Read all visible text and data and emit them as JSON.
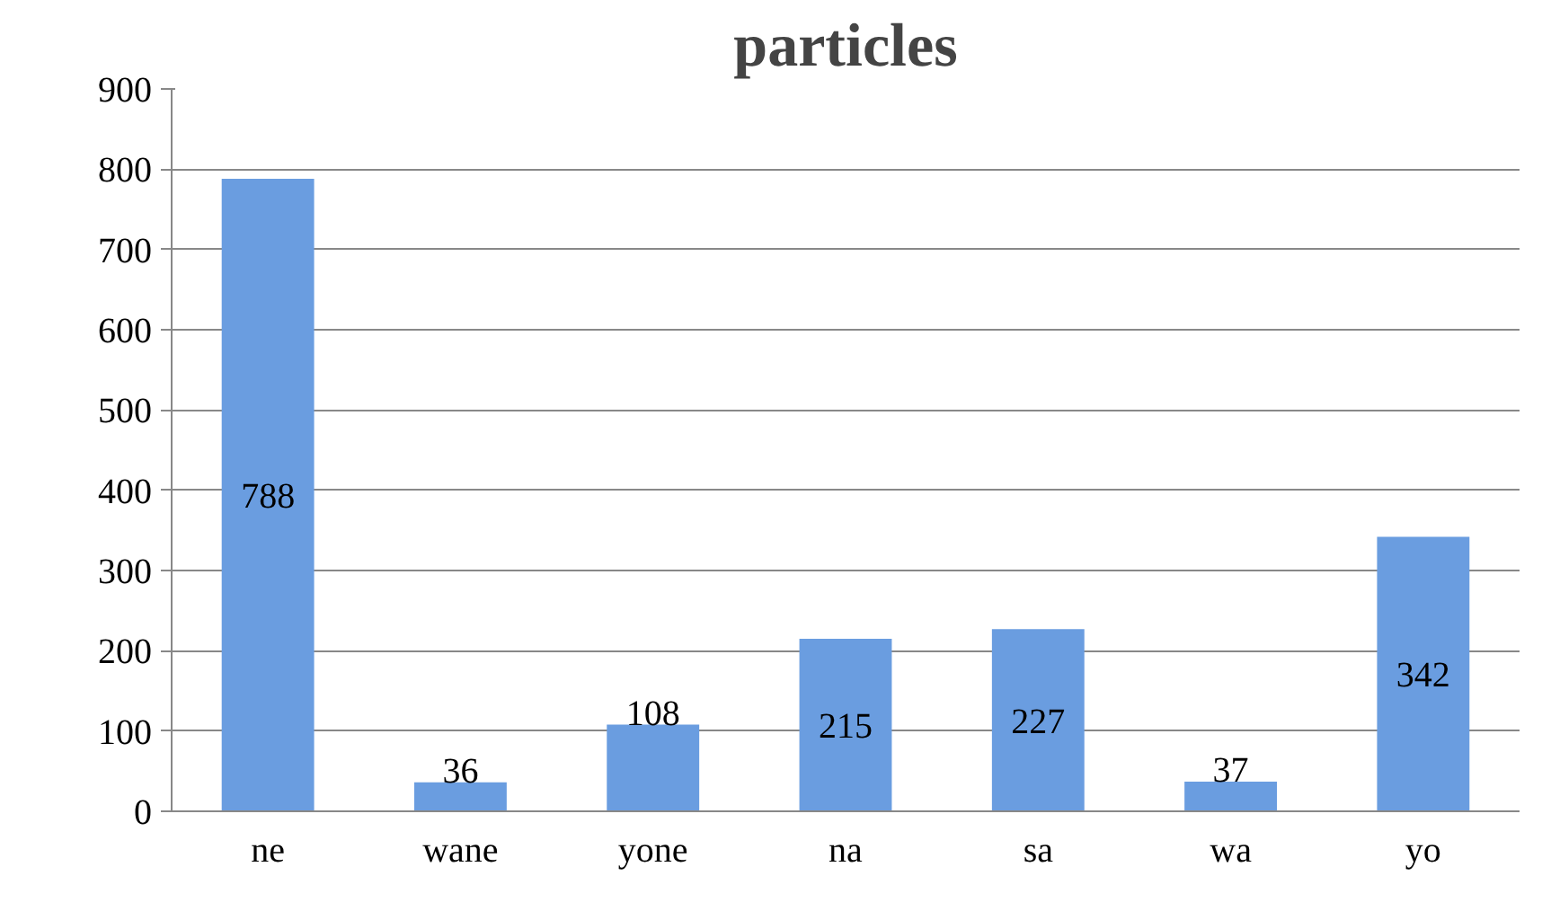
{
  "chart_data": {
    "type": "bar",
    "title": "particles",
    "categories": [
      "ne",
      "wane",
      "yone",
      "na",
      "sa",
      "wa",
      "yo"
    ],
    "values": [
      788,
      36,
      108,
      215,
      227,
      37,
      342
    ],
    "color": "#6a9de0",
    "ylim": [
      0,
      900
    ],
    "yticks": [
      0,
      100,
      200,
      300,
      400,
      500,
      600,
      700,
      800,
      900
    ],
    "grid": "y",
    "data_labels": true
  }
}
